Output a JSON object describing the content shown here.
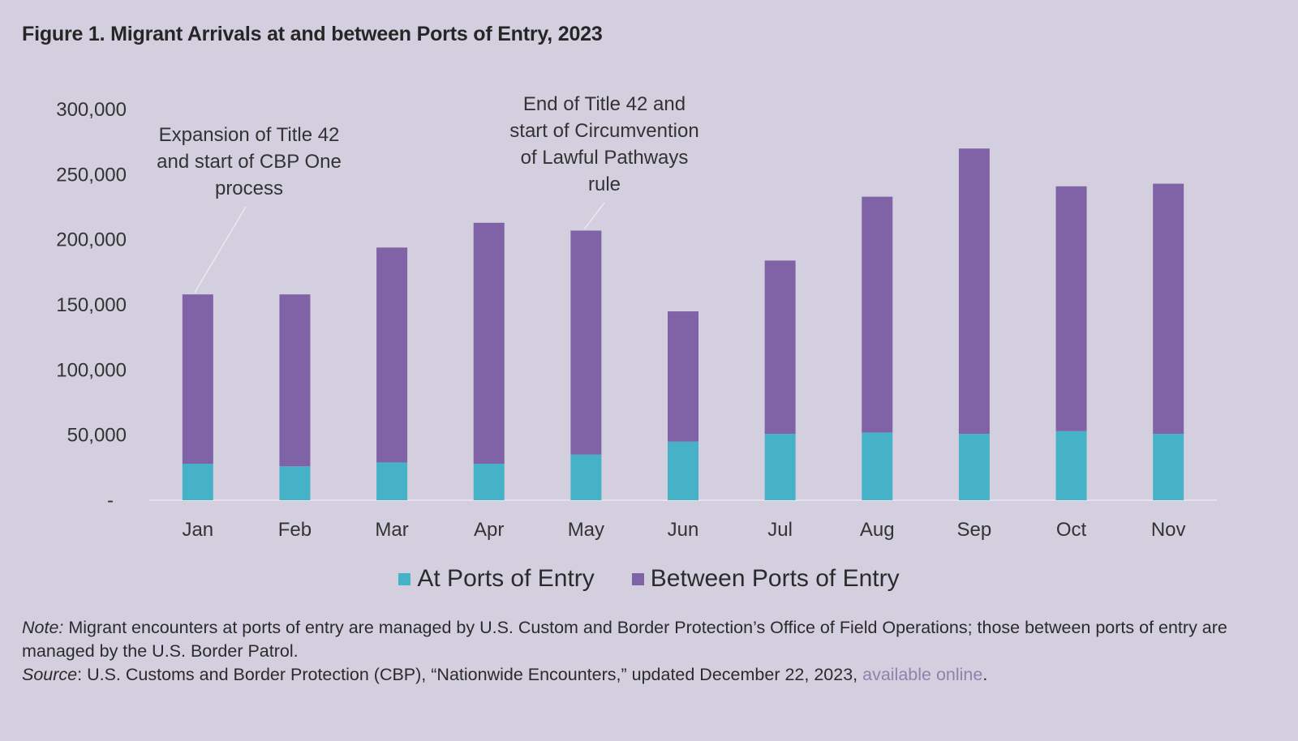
{
  "figure": {
    "title": "Figure 1. Migrant Arrivals at and between Ports of Entry, 2023"
  },
  "chart_data": {
    "type": "bar",
    "stacked": true,
    "categories": [
      "Jan",
      "Feb",
      "Mar",
      "Apr",
      "May",
      "Jun",
      "Jul",
      "Aug",
      "Sep",
      "Oct",
      "Nov"
    ],
    "series": [
      {
        "name": "At Ports of Entry",
        "color": "#46b2c8",
        "values": [
          28000,
          26000,
          29000,
          28000,
          35000,
          45000,
          51000,
          52000,
          51000,
          53000,
          51000
        ]
      },
      {
        "name": "Between Ports of Entry",
        "color": "#8063a7",
        "values": [
          130000,
          132000,
          165000,
          185000,
          172000,
          100000,
          133000,
          181000,
          219000,
          188000,
          192000
        ]
      }
    ],
    "y_ticks": [
      {
        "value": 0,
        "label": "-"
      },
      {
        "value": 50000,
        "label": "50,000"
      },
      {
        "value": 100000,
        "label": "100,000"
      },
      {
        "value": 150000,
        "label": "150,000"
      },
      {
        "value": 200000,
        "label": "200,000"
      },
      {
        "value": 250000,
        "label": "250,000"
      },
      {
        "value": 300000,
        "label": "300,000"
      }
    ],
    "ylim": [
      0,
      300000
    ],
    "grid": false,
    "legend_position": "bottom",
    "annotations": [
      {
        "category": "Jan",
        "lines": [
          "Expansion of Title 42",
          "and start of CBP One",
          "process"
        ]
      },
      {
        "category": "May",
        "lines": [
          "End of Title 42 and",
          "start of Circumvention",
          "of Lawful Pathways",
          "rule"
        ]
      }
    ]
  },
  "notes": {
    "note_label": "Note:",
    "note_text": " Migrant encounters at ports of entry are managed by U.S. Custom and Border Protection’s Office of Field Operations; those between ports of entry are managed by the U.S. Border Patrol.",
    "source_label": "Source",
    "source_text": ": U.S. Customs and Border Protection (CBP), “Nationwide Encounters,” updated December 22, 2023, ",
    "source_link": "available online",
    "source_end": "."
  }
}
